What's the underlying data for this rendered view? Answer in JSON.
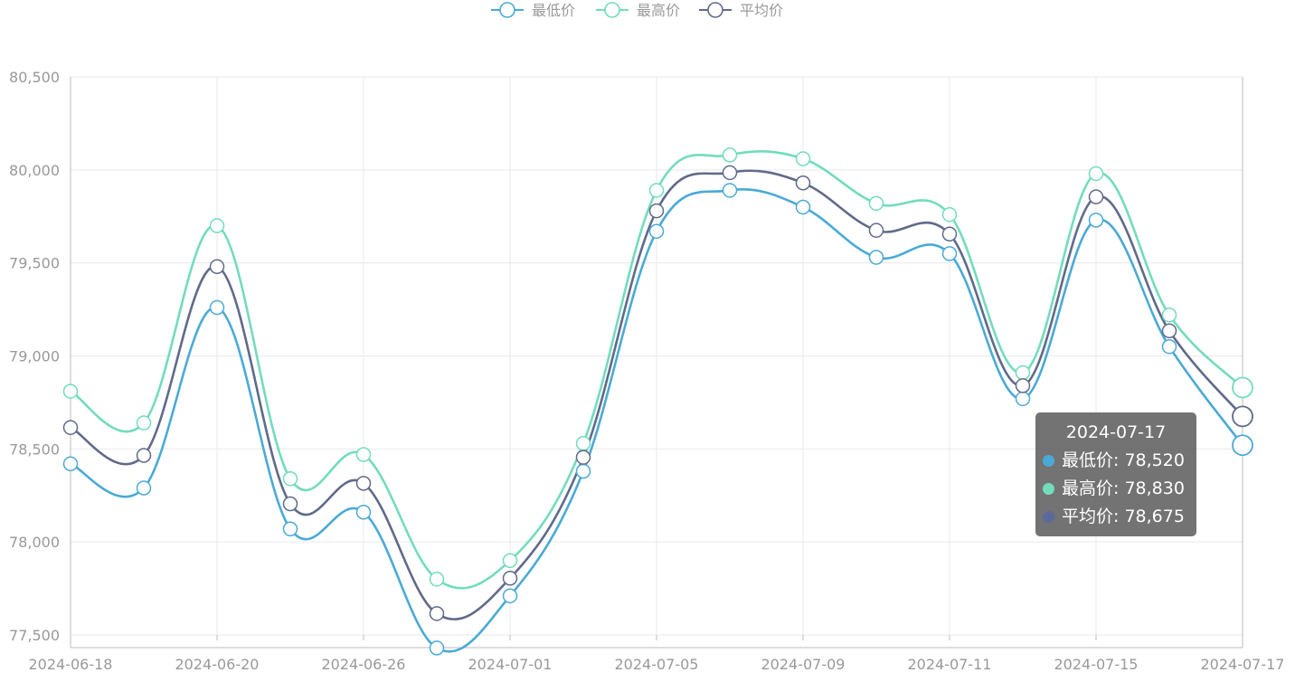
{
  "chart_data": {
    "type": "line",
    "smooth": true,
    "x": [
      "2024-06-18",
      "2024-06-19",
      "2024-06-20",
      "2024-06-23",
      "2024-06-26",
      "2024-06-27",
      "2024-07-01",
      "2024-07-02",
      "2024-07-05",
      "2024-07-08",
      "2024-07-09",
      "2024-07-10",
      "2024-07-11",
      "2024-07-12",
      "2024-07-15",
      "2024-07-16",
      "2024-07-17"
    ],
    "xtick_labels": [
      "2024-06-18",
      "2024-06-20",
      "2024-06-26",
      "2024-07-01",
      "2024-07-05",
      "2024-07-09",
      "2024-07-11",
      "2024-07-15",
      "2024-07-17"
    ],
    "ylim": [
      77500,
      80500
    ],
    "ytick_values": [
      77500,
      78000,
      78500,
      79000,
      79500,
      80000,
      80500
    ],
    "ytick_labels": [
      "77,500",
      "78,000",
      "78,500",
      "79,000",
      "79,500",
      "80,000",
      "80,500"
    ],
    "grid": true,
    "legend_position": "top-center",
    "series": [
      {
        "name": "最低价",
        "color": "#4aaad6",
        "values": [
          78420,
          78290,
          79260,
          78070,
          78160,
          77430,
          77710,
          78380,
          79670,
          79890,
          79800,
          79530,
          79550,
          78770,
          79730,
          79050,
          78520
        ]
      },
      {
        "name": "最高价",
        "color": "#72dcbd",
        "values": [
          78810,
          78640,
          79700,
          78340,
          78470,
          77800,
          77900,
          78530,
          79890,
          80080,
          80060,
          79820,
          79760,
          78910,
          79980,
          79220,
          78830
        ]
      },
      {
        "name": "平均价",
        "color": "#606a8a",
        "values": [
          78615,
          78465,
          79480,
          78205,
          78315,
          77615,
          77805,
          78455,
          79780,
          79985,
          79930,
          79675,
          79655,
          78840,
          79855,
          79135,
          78675
        ]
      }
    ]
  },
  "tooltip": {
    "title": "2024-07-17",
    "rows": [
      {
        "label": "最低价: 78,520",
        "color": "#4aaad6"
      },
      {
        "label": "最高价: 78,830",
        "color": "#72dcbd"
      },
      {
        "label": "平均价: 78,675",
        "color": "#606a8a"
      }
    ]
  }
}
